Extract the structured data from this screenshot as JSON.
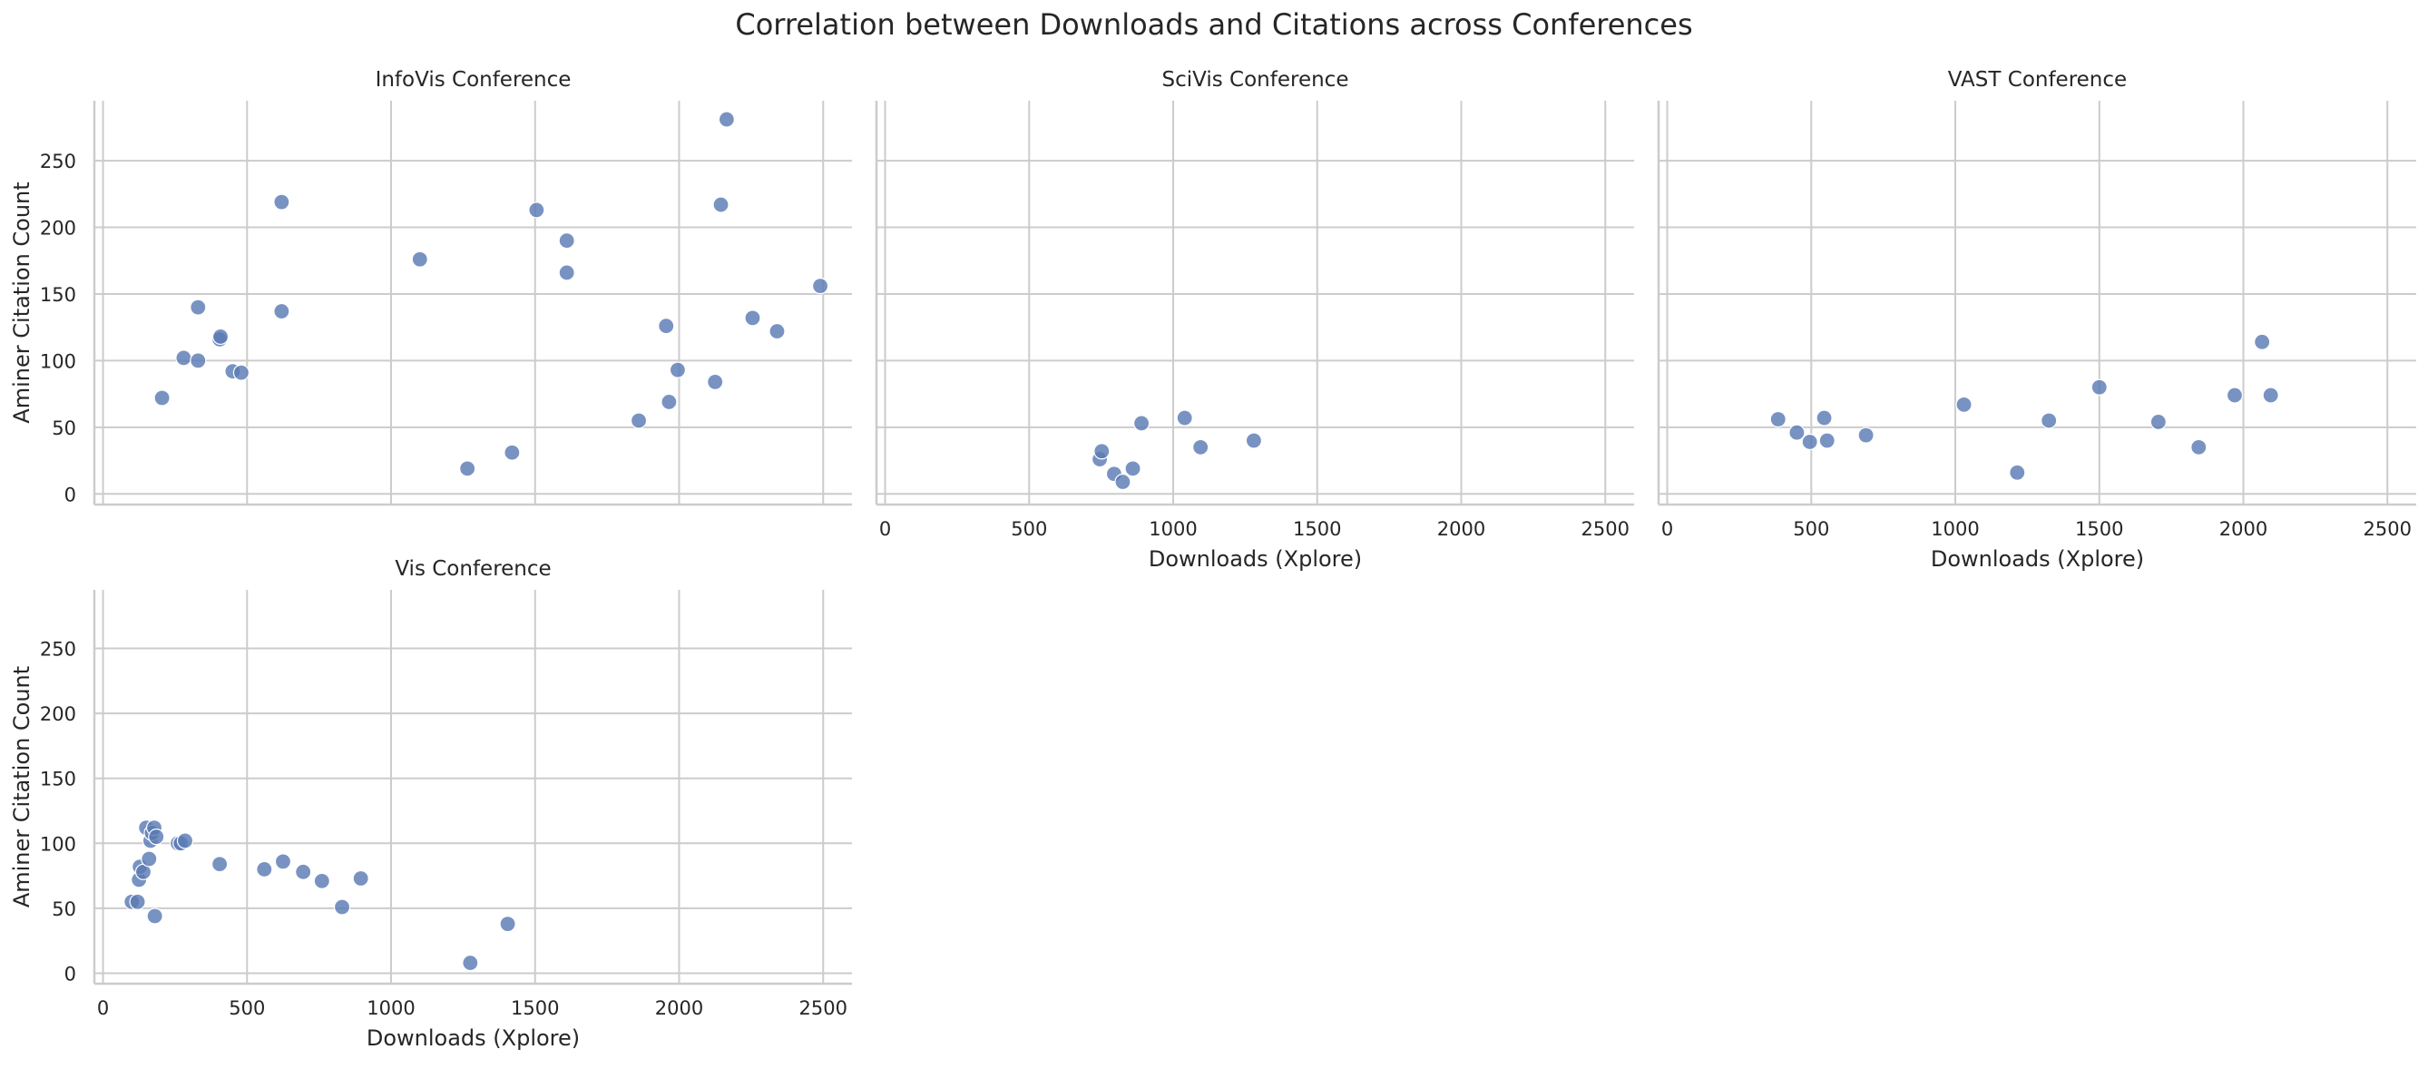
{
  "figure": {
    "title": "Correlation between Downloads and Citations across Conferences"
  },
  "colors": {
    "point": "#5a7bb5",
    "grid": "#cccccc",
    "axis": "#cccccc",
    "text": "#262626"
  },
  "chart_data": [
    {
      "type": "scatter",
      "title": "InfoVis Conference",
      "xlabel": "",
      "ylabel": "Aminer Citation Count",
      "show_x_ticks": false,
      "xlim": [
        -30,
        2600
      ],
      "ylim": [
        -8,
        295
      ],
      "x_ticks": [
        0,
        500,
        1000,
        1500,
        2000,
        2500
      ],
      "y_ticks": [
        0,
        50,
        100,
        150,
        200,
        250
      ],
      "grid": true,
      "points": [
        {
          "x": 205,
          "y": 72
        },
        {
          "x": 280,
          "y": 102
        },
        {
          "x": 330,
          "y": 140
        },
        {
          "x": 330,
          "y": 100
        },
        {
          "x": 405,
          "y": 116
        },
        {
          "x": 408,
          "y": 118
        },
        {
          "x": 450,
          "y": 92
        },
        {
          "x": 480,
          "y": 91
        },
        {
          "x": 620,
          "y": 219
        },
        {
          "x": 620,
          "y": 137
        },
        {
          "x": 1100,
          "y": 176
        },
        {
          "x": 1265,
          "y": 19
        },
        {
          "x": 1420,
          "y": 31
        },
        {
          "x": 1505,
          "y": 213
        },
        {
          "x": 1610,
          "y": 190
        },
        {
          "x": 1610,
          "y": 166
        },
        {
          "x": 1860,
          "y": 55
        },
        {
          "x": 1955,
          "y": 126
        },
        {
          "x": 1965,
          "y": 69
        },
        {
          "x": 1995,
          "y": 93
        },
        {
          "x": 2125,
          "y": 84
        },
        {
          "x": 2145,
          "y": 217
        },
        {
          "x": 2165,
          "y": 281
        },
        {
          "x": 2255,
          "y": 132
        },
        {
          "x": 2340,
          "y": 122
        },
        {
          "x": 2490,
          "y": 156
        }
      ]
    },
    {
      "type": "scatter",
      "title": "SciVis Conference",
      "xlabel": "Downloads (Xplore)",
      "ylabel": "",
      "show_x_ticks": true,
      "xlim": [
        -30,
        2600
      ],
      "ylim": [
        -8,
        295
      ],
      "x_ticks": [
        0,
        500,
        1000,
        1500,
        2000,
        2500
      ],
      "y_ticks": [
        0,
        50,
        100,
        150,
        200,
        250
      ],
      "grid": true,
      "points": [
        {
          "x": 745,
          "y": 26
        },
        {
          "x": 752,
          "y": 32
        },
        {
          "x": 795,
          "y": 15
        },
        {
          "x": 825,
          "y": 9
        },
        {
          "x": 860,
          "y": 19
        },
        {
          "x": 890,
          "y": 53
        },
        {
          "x": 1040,
          "y": 57
        },
        {
          "x": 1095,
          "y": 35
        },
        {
          "x": 1280,
          "y": 40
        }
      ]
    },
    {
      "type": "scatter",
      "title": "VAST Conference",
      "xlabel": "Downloads (Xplore)",
      "ylabel": "",
      "show_x_ticks": true,
      "xlim": [
        -30,
        2600
      ],
      "ylim": [
        -8,
        295
      ],
      "x_ticks": [
        0,
        500,
        1000,
        1500,
        2000,
        2500
      ],
      "y_ticks": [
        0,
        50,
        100,
        150,
        200,
        250
      ],
      "grid": true,
      "points": [
        {
          "x": 385,
          "y": 56
        },
        {
          "x": 450,
          "y": 46
        },
        {
          "x": 495,
          "y": 39
        },
        {
          "x": 545,
          "y": 57
        },
        {
          "x": 555,
          "y": 40
        },
        {
          "x": 690,
          "y": 44
        },
        {
          "x": 1030,
          "y": 67
        },
        {
          "x": 1215,
          "y": 16
        },
        {
          "x": 1325,
          "y": 55
        },
        {
          "x": 1500,
          "y": 80
        },
        {
          "x": 1705,
          "y": 54
        },
        {
          "x": 1845,
          "y": 35
        },
        {
          "x": 1970,
          "y": 74
        },
        {
          "x": 2065,
          "y": 114
        },
        {
          "x": 2095,
          "y": 74
        }
      ]
    },
    {
      "type": "scatter",
      "title": "Vis Conference",
      "xlabel": "Downloads (Xplore)",
      "ylabel": "Aminer Citation Count",
      "show_x_ticks": true,
      "xlim": [
        -30,
        2600
      ],
      "ylim": [
        -8,
        295
      ],
      "x_ticks": [
        0,
        500,
        1000,
        1500,
        2000,
        2500
      ],
      "y_ticks": [
        0,
        50,
        100,
        150,
        200,
        250
      ],
      "grid": true,
      "points": [
        {
          "x": 100,
          "y": 55
        },
        {
          "x": 120,
          "y": 55
        },
        {
          "x": 125,
          "y": 72
        },
        {
          "x": 128,
          "y": 82
        },
        {
          "x": 140,
          "y": 78
        },
        {
          "x": 150,
          "y": 112
        },
        {
          "x": 160,
          "y": 88
        },
        {
          "x": 165,
          "y": 102
        },
        {
          "x": 170,
          "y": 108
        },
        {
          "x": 178,
          "y": 112
        },
        {
          "x": 180,
          "y": 44
        },
        {
          "x": 185,
          "y": 105
        },
        {
          "x": 260,
          "y": 100
        },
        {
          "x": 270,
          "y": 100
        },
        {
          "x": 285,
          "y": 102
        },
        {
          "x": 405,
          "y": 84
        },
        {
          "x": 560,
          "y": 80
        },
        {
          "x": 625,
          "y": 86
        },
        {
          "x": 695,
          "y": 78
        },
        {
          "x": 760,
          "y": 71
        },
        {
          "x": 830,
          "y": 51
        },
        {
          "x": 895,
          "y": 73
        },
        {
          "x": 1275,
          "y": 8
        },
        {
          "x": 1405,
          "y": 38
        }
      ]
    }
  ]
}
